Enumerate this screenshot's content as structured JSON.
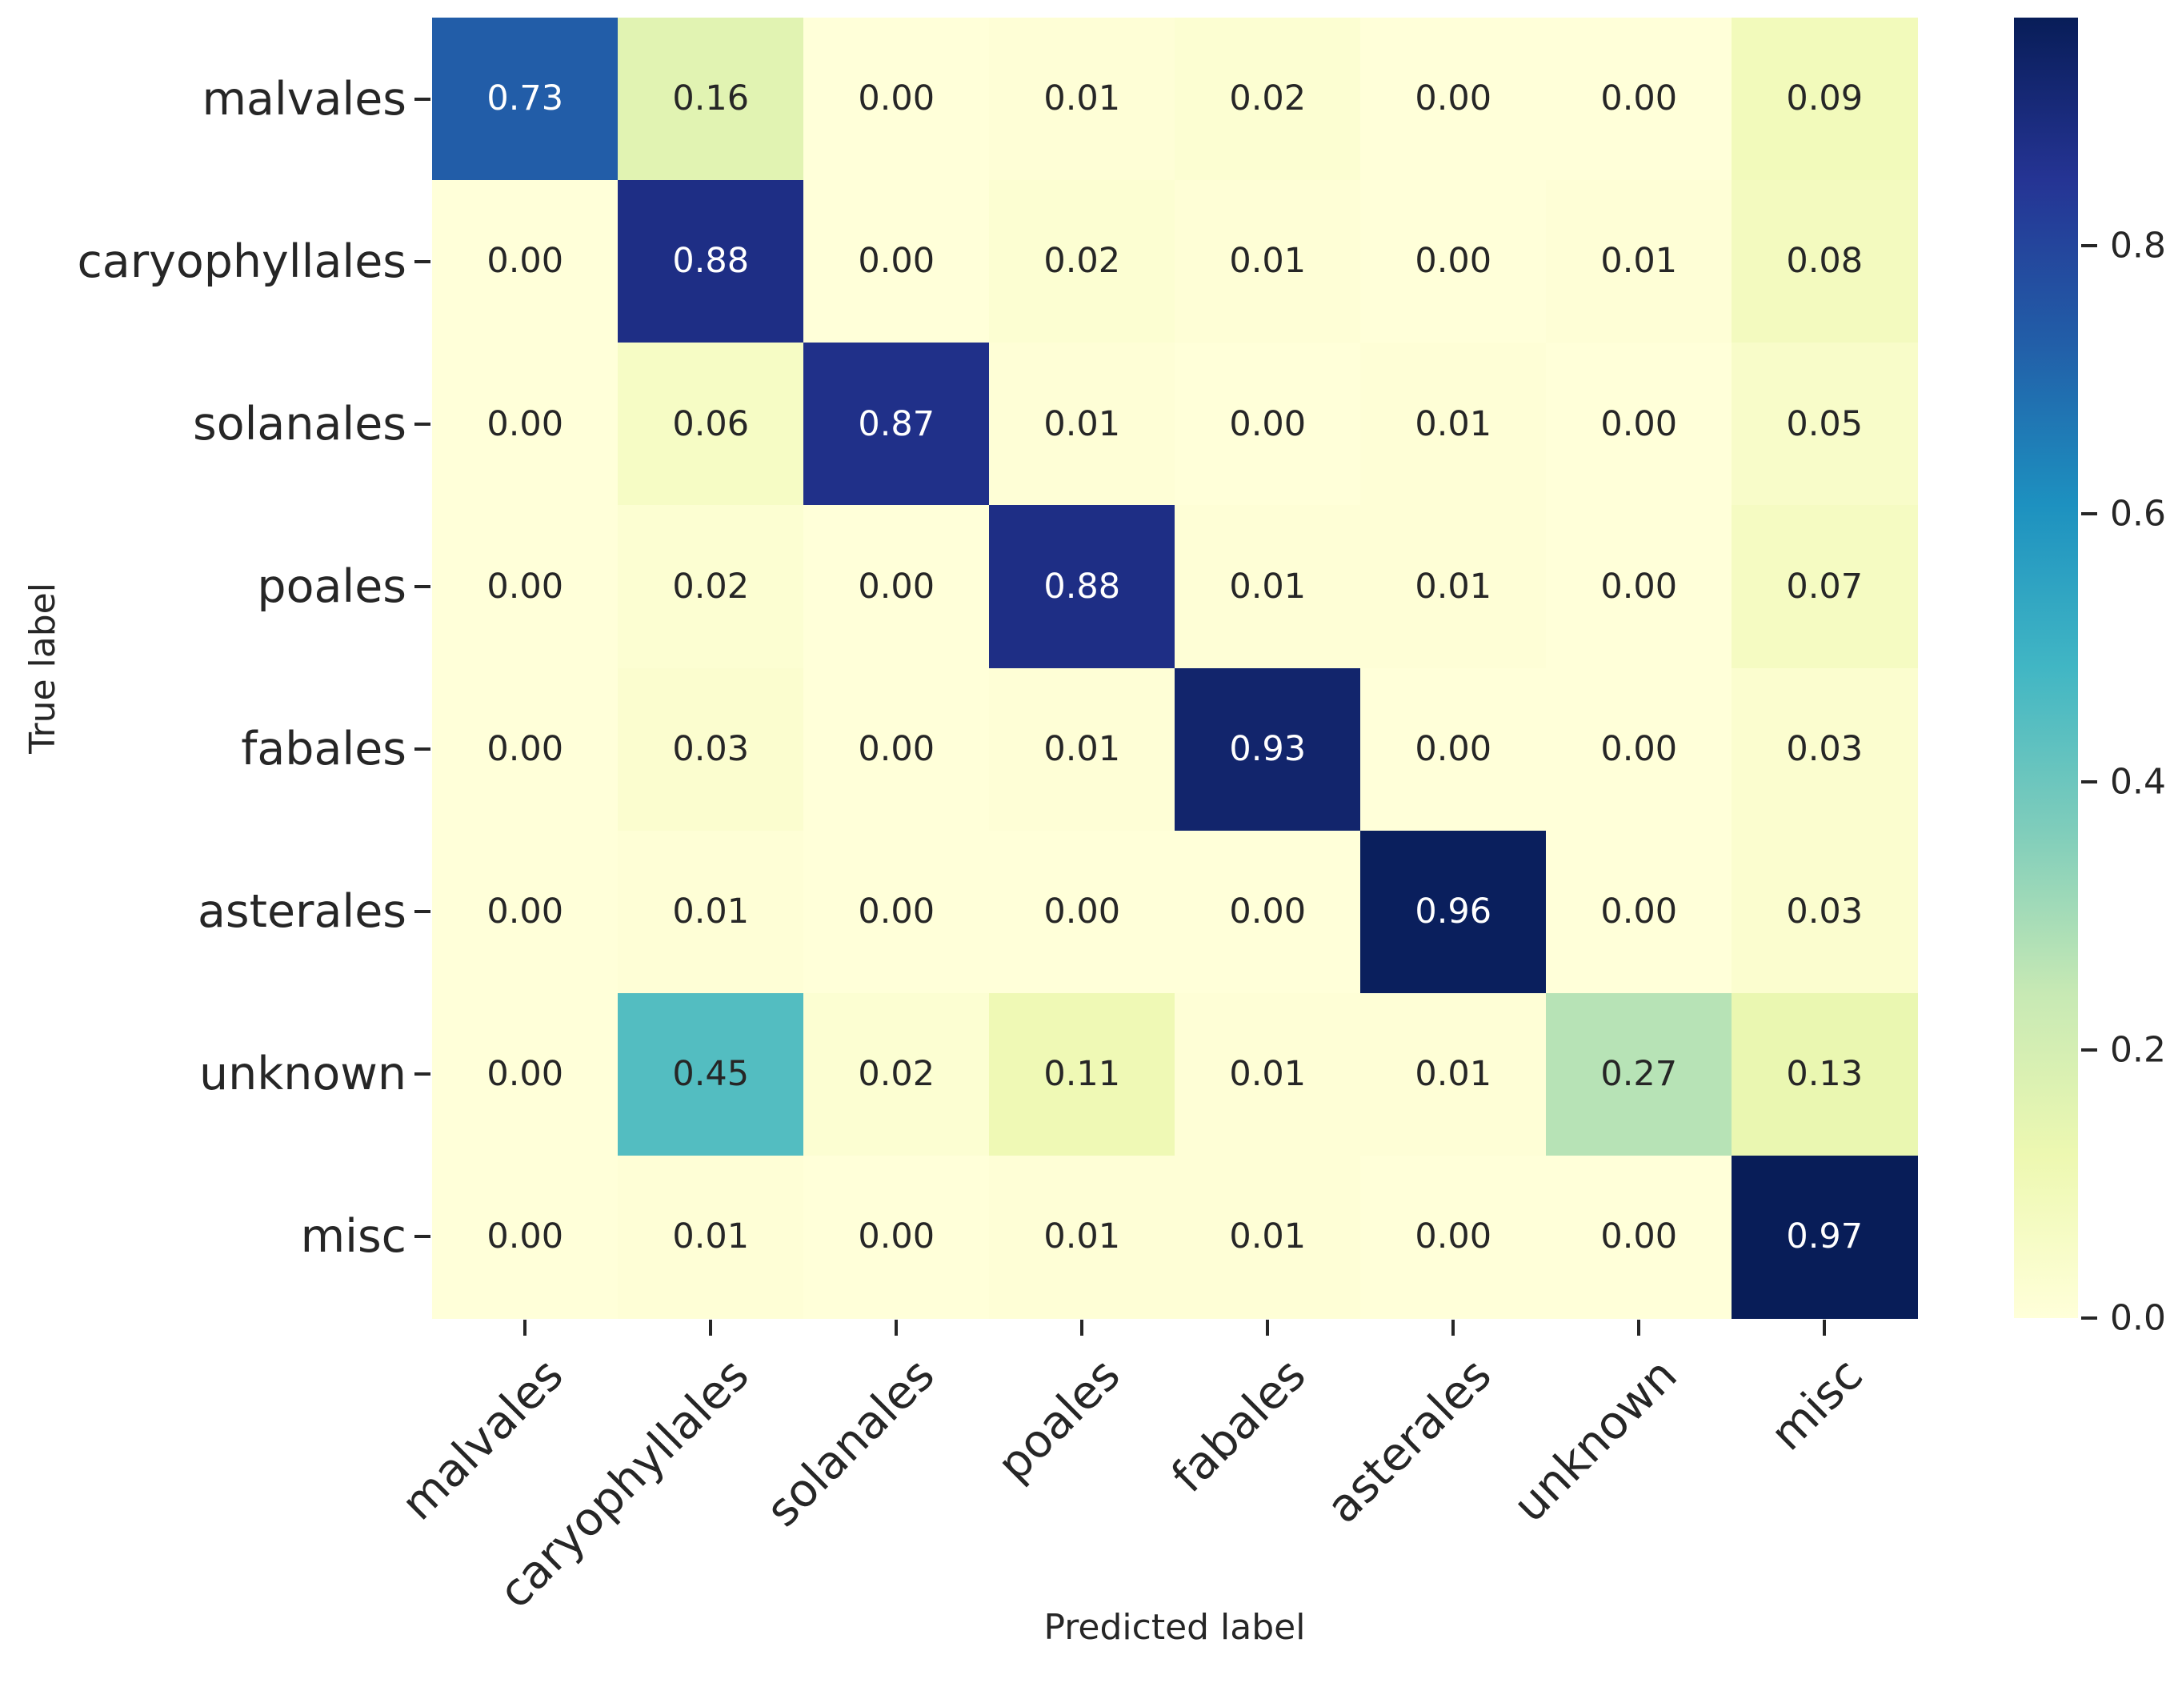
{
  "chart_data": {
    "type": "heatmap",
    "title": "",
    "xlabel": "Predicted label",
    "ylabel": "True label",
    "x_tick_labels": [
      "malvales",
      "caryophyllales",
      "solanales",
      "poales",
      "fabales",
      "asterales",
      "unknown",
      "misc"
    ],
    "y_tick_labels": [
      "malvales",
      "caryophyllales",
      "solanales",
      "poales",
      "fabales",
      "asterales",
      "unknown",
      "misc"
    ],
    "matrix": [
      [
        0.73,
        0.16,
        0.0,
        0.01,
        0.02,
        0.0,
        0.0,
        0.09
      ],
      [
        0.0,
        0.88,
        0.0,
        0.02,
        0.01,
        0.0,
        0.01,
        0.08
      ],
      [
        0.0,
        0.06,
        0.87,
        0.01,
        0.0,
        0.01,
        0.0,
        0.05
      ],
      [
        0.0,
        0.02,
        0.0,
        0.88,
        0.01,
        0.01,
        0.0,
        0.07
      ],
      [
        0.0,
        0.03,
        0.0,
        0.01,
        0.93,
        0.0,
        0.0,
        0.03
      ],
      [
        0.0,
        0.01,
        0.0,
        0.0,
        0.0,
        0.96,
        0.0,
        0.03
      ],
      [
        0.0,
        0.45,
        0.02,
        0.11,
        0.01,
        0.01,
        0.27,
        0.13
      ],
      [
        0.0,
        0.01,
        0.0,
        0.01,
        0.01,
        0.0,
        0.0,
        0.97
      ]
    ],
    "value_decimals": 2,
    "vmin": 0.0,
    "vmax": 0.97,
    "colormap": {
      "name": "YlGnBu",
      "stops": [
        "#ffffd9",
        "#edf8b1",
        "#c7e9b4",
        "#7fcdbb",
        "#41b6c4",
        "#1d91c0",
        "#225ea8",
        "#253494",
        "#081d58"
      ]
    },
    "colorbar": {
      "position": "right",
      "tick_labels": [
        "0.0",
        "0.2",
        "0.4",
        "0.6",
        "0.8"
      ],
      "tick_values": [
        0.0,
        0.2,
        0.4,
        0.6,
        0.8
      ]
    },
    "annotation_colors": {
      "light_text": "#ffffff",
      "dark_text": "#262626"
    },
    "grid": false,
    "legend": false
  }
}
